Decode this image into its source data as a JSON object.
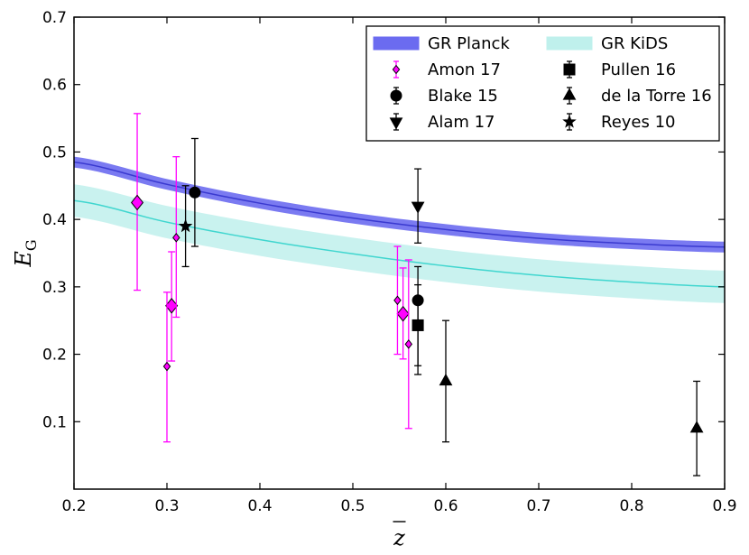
{
  "chart_data": {
    "type": "scatter",
    "title": "",
    "xlabel": "z",
    "ylabel_main": "E",
    "ylabel_sub": "G",
    "xlim": [
      0.2,
      0.9
    ],
    "ylim": [
      0.0,
      0.7
    ],
    "xticks": [
      0.2,
      0.3,
      0.4,
      0.5,
      0.6,
      0.7,
      0.8,
      0.9
    ],
    "yticks": [
      0.1,
      0.2,
      0.3,
      0.4,
      0.5,
      0.6,
      0.7
    ],
    "xtick_labels": [
      "0.2",
      "0.3",
      "0.4",
      "0.5",
      "0.6",
      "0.7",
      "0.8",
      "0.9"
    ],
    "ytick_labels": [
      "0.1",
      "0.2",
      "0.3",
      "0.4",
      "0.5",
      "0.6",
      "0.7"
    ],
    "grid": false,
    "legend_position": "top-right",
    "bands": [
      {
        "name": "GR Planck",
        "fill": "#6b6bf0",
        "line": "#3a3ad0",
        "x": [
          0.2,
          0.3,
          0.4,
          0.5,
          0.6,
          0.7,
          0.8,
          0.9
        ],
        "center": [
          0.485,
          0.452,
          0.424,
          0.402,
          0.385,
          0.372,
          0.364,
          0.359
        ],
        "half_width": 0.008
      },
      {
        "name": "GR KiDS",
        "fill": "#bff0ec",
        "line": "#40d6cf",
        "x": [
          0.2,
          0.3,
          0.4,
          0.5,
          0.6,
          0.7,
          0.8,
          0.9
        ],
        "center": [
          0.428,
          0.396,
          0.37,
          0.349,
          0.331,
          0.317,
          0.307,
          0.3
        ],
        "half_width": 0.024
      }
    ],
    "series": [
      {
        "name": "Amon 17",
        "marker": "diamond",
        "color": "#ff00ff",
        "points": [
          {
            "x": 0.268,
            "y": 0.425,
            "yerr_low": 0.13,
            "yerr_high": 0.132,
            "size": "large"
          },
          {
            "x": 0.305,
            "y": 0.272,
            "yerr_low": 0.082,
            "yerr_high": 0.08,
            "size": "large"
          },
          {
            "x": 0.3,
            "y": 0.182,
            "yerr_low": 0.112,
            "yerr_high": 0.11,
            "size": "small"
          },
          {
            "x": 0.31,
            "y": 0.373,
            "yerr_low": 0.118,
            "yerr_high": 0.12,
            "size": "small"
          },
          {
            "x": 0.554,
            "y": 0.26,
            "yerr_low": 0.067,
            "yerr_high": 0.068,
            "size": "large"
          },
          {
            "x": 0.548,
            "y": 0.28,
            "yerr_low": 0.08,
            "yerr_high": 0.08,
            "size": "small"
          },
          {
            "x": 0.56,
            "y": 0.215,
            "yerr_low": 0.125,
            "yerr_high": 0.125,
            "size": "small"
          }
        ]
      },
      {
        "name": "Blake 15",
        "marker": "circle",
        "color": "#000000",
        "points": [
          {
            "x": 0.33,
            "y": 0.44,
            "yerr_low": 0.08,
            "yerr_high": 0.08
          },
          {
            "x": 0.57,
            "y": 0.28,
            "yerr_low": 0.11,
            "yerr_high": 0.05
          }
        ]
      },
      {
        "name": "Alam 17",
        "marker": "triangle-down",
        "color": "#000000",
        "points": [
          {
            "x": 0.57,
            "y": 0.42,
            "yerr_low": 0.055,
            "yerr_high": 0.055
          }
        ]
      },
      {
        "name": "Pullen 16",
        "marker": "square",
        "color": "#000000",
        "points": [
          {
            "x": 0.57,
            "y": 0.243,
            "yerr_low": 0.06,
            "yerr_high": 0.06
          }
        ]
      },
      {
        "name": "de la Torre 16",
        "marker": "triangle-up",
        "color": "#000000",
        "points": [
          {
            "x": 0.6,
            "y": 0.16,
            "yerr_low": 0.09,
            "yerr_high": 0.09
          },
          {
            "x": 0.87,
            "y": 0.09,
            "yerr_low": 0.07,
            "yerr_high": 0.07
          }
        ]
      },
      {
        "name": "Reyes 10",
        "marker": "star",
        "color": "#000000",
        "points": [
          {
            "x": 0.32,
            "y": 0.39,
            "yerr_low": 0.06,
            "yerr_high": 0.06
          }
        ]
      }
    ],
    "legend": [
      {
        "label": "GR Planck",
        "kind": "band",
        "ref": "GR Planck"
      },
      {
        "label": "GR KiDS",
        "kind": "band",
        "ref": "GR KiDS"
      },
      {
        "label": "Amon 17",
        "kind": "marker",
        "ref": "Amon 17"
      },
      {
        "label": "Pullen 16",
        "kind": "marker",
        "ref": "Pullen 16"
      },
      {
        "label": "Blake 15",
        "kind": "marker",
        "ref": "Blake 15"
      },
      {
        "label": "de la Torre 16",
        "kind": "marker",
        "ref": "de la Torre 16"
      },
      {
        "label": "Alam 17",
        "kind": "marker",
        "ref": "Alam 17"
      },
      {
        "label": "Reyes 10",
        "kind": "marker",
        "ref": "Reyes 10"
      }
    ]
  }
}
